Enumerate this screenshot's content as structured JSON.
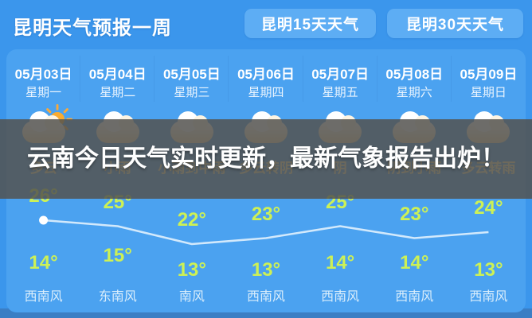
{
  "header": {
    "title": "昆明天气预报一周",
    "buttons": [
      {
        "label": "昆明15天天气"
      },
      {
        "label": "昆明30天天气"
      }
    ]
  },
  "banner": {
    "text": "云南今日天气实时更新，最新气象报告出炉！"
  },
  "forecast": {
    "degree_symbol": "°",
    "days": [
      {
        "date": "05月03日",
        "weekday": "星期一",
        "icon": "sun-cloud-icon",
        "condition": "多云",
        "high": 26,
        "low": 14,
        "wind": "西南风"
      },
      {
        "date": "05月04日",
        "weekday": "星期二",
        "icon": "cloud-icon",
        "condition": "小雨",
        "high": 25,
        "low": 15,
        "wind": "东南风"
      },
      {
        "date": "05月05日",
        "weekday": "星期三",
        "icon": "cloud-icon",
        "condition": "小雨到中雨",
        "high": 22,
        "low": 13,
        "wind": "南风"
      },
      {
        "date": "05月06日",
        "weekday": "星期四",
        "icon": "cloud-icon",
        "condition": "多云转阴",
        "high": 23,
        "low": 13,
        "wind": "西南风"
      },
      {
        "date": "05月07日",
        "weekday": "星期五",
        "icon": "cloud-icon",
        "condition": "阴",
        "high": 25,
        "low": 14,
        "wind": "西南风"
      },
      {
        "date": "05月08日",
        "weekday": "星期六",
        "icon": "cloud-icon",
        "condition": "阴到小雨",
        "high": 23,
        "low": 14,
        "wind": "西南风"
      },
      {
        "date": "05月09日",
        "weekday": "星期日",
        "icon": "cloud-icon",
        "condition": "多云转雨",
        "high": 24,
        "low": 13,
        "wind": "西南风"
      }
    ]
  },
  "colors": {
    "header_bg": "#3b96ec",
    "card_bg": "#4ba2f0",
    "button_bg": "#5dadf4",
    "page_bottom_bg": "#3b7ec4",
    "temp_text": "#cdf155",
    "condition_text": "#ffe9a6",
    "wind_text": "#d9edfb",
    "line_color": "#d9edfc",
    "overlay_bg": "rgba(84,82,79,0.85)",
    "banner_text": "#ffffff"
  }
}
